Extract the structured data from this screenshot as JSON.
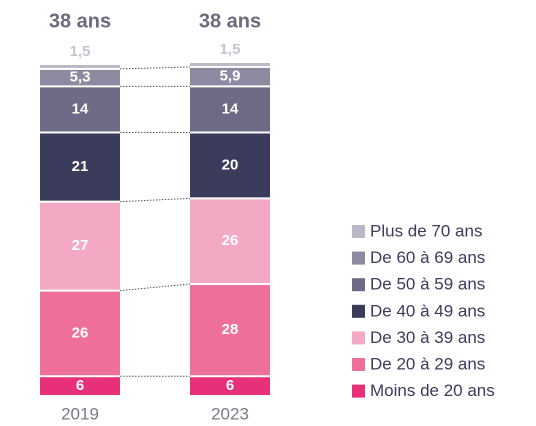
{
  "chart_data": {
    "type": "stacked_bar",
    "categories": [
      "2019",
      "2023"
    ],
    "annotations": [
      "38 ans",
      "38 ans"
    ],
    "series": [
      {
        "name": "Moins de 20 ans",
        "color": "#e8307a",
        "values": [
          6,
          6
        ]
      },
      {
        "name": "De 20 à 29 ans",
        "color": "#ef6f9b",
        "values": [
          26,
          28
        ]
      },
      {
        "name": "De 30 à 39 ans",
        "color": "#f3a8c3",
        "values": [
          27,
          26
        ]
      },
      {
        "name": "De 40 à 49 ans",
        "color": "#3b3b5c",
        "values": [
          21,
          20
        ]
      },
      {
        "name": "De 50 à 59 ans",
        "color": "#6c6a85",
        "values": [
          14,
          14
        ]
      },
      {
        "name": "De 60 à 69 ans",
        "color": "#8c8aa0",
        "values": [
          5.3,
          5.9
        ],
        "value_labels": [
          "5,3",
          "5,9"
        ]
      },
      {
        "name": "Plus de 70 ans",
        "color": "#b9b8c6",
        "values": [
          1.5,
          1.5
        ],
        "value_labels": [
          "1,5",
          "1,5"
        ]
      }
    ]
  }
}
